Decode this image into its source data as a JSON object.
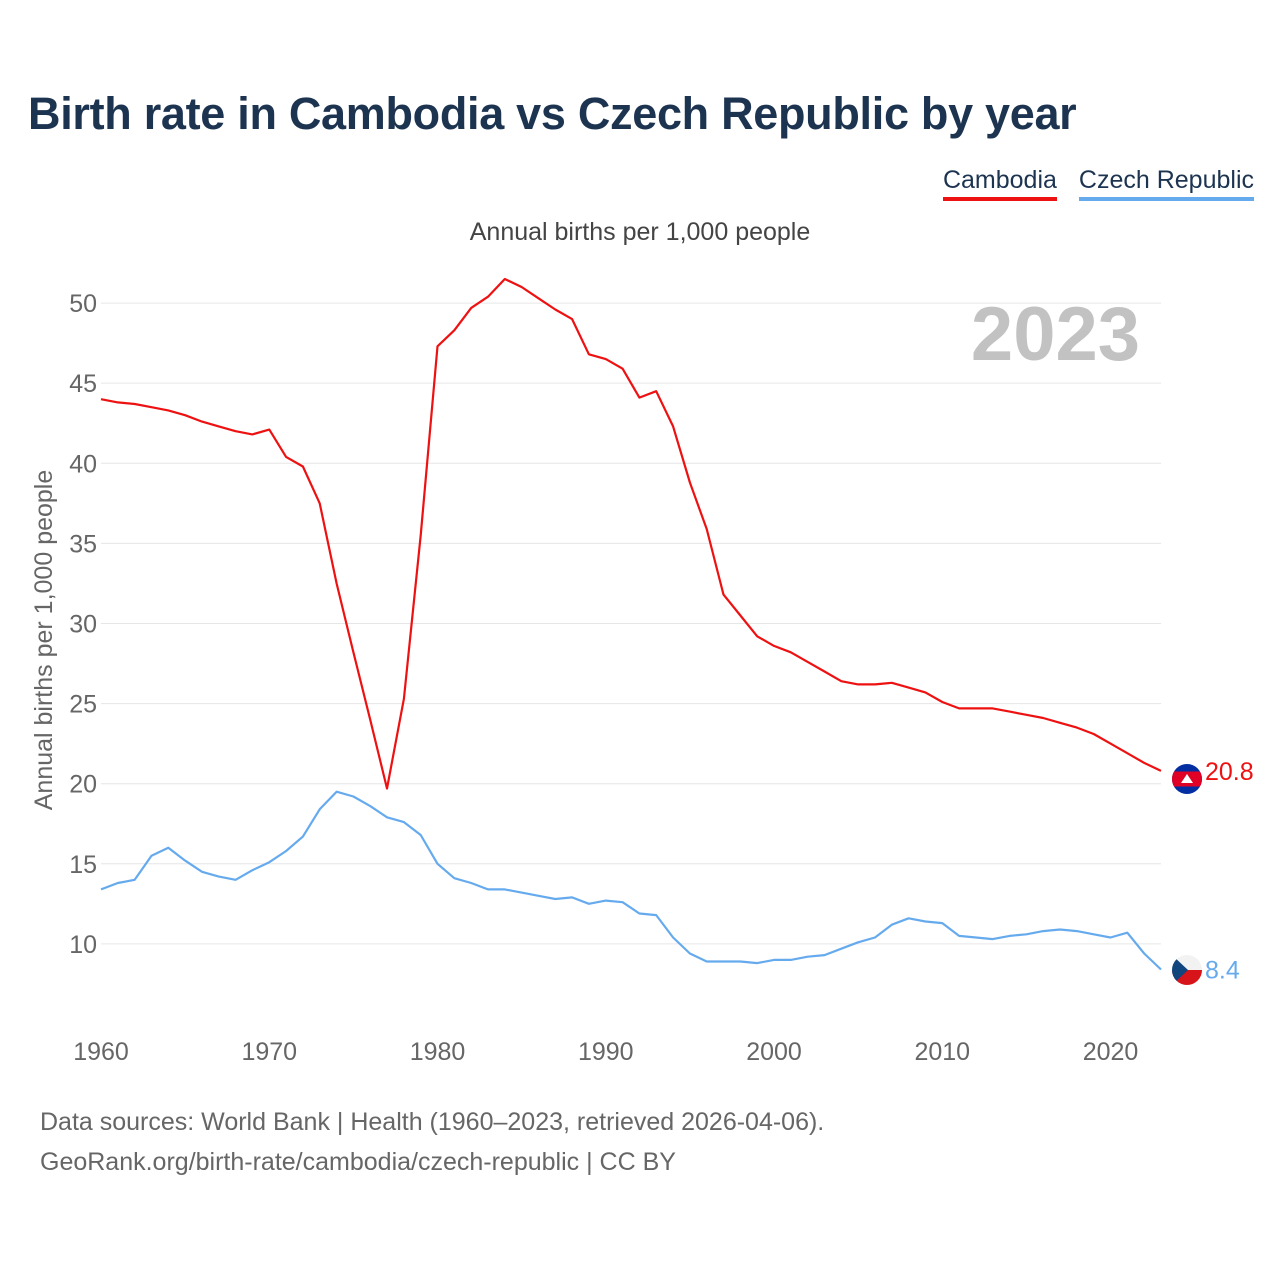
{
  "title": "Birth rate in Cambodia vs Czech Republic by year",
  "legend": [
    {
      "label": "Cambodia",
      "color": "#ee1111"
    },
    {
      "label": "Czech Republic",
      "color": "#66aaee"
    }
  ],
  "subtitle": "Annual births per 1,000 people",
  "footer": {
    "sources": "Data sources: World Bank | Health (1960–2023, retrieved 2026-04-06).",
    "link": "GeoRank.org/birth-rate/cambodia/czech-republic | CC BY"
  },
  "chart_data": {
    "type": "line",
    "title": "Birth rate in Cambodia vs Czech Republic by year",
    "ylabel": "Annual births per 1,000 people",
    "xlabel": "",
    "year_label": "2023",
    "xlim": [
      1960,
      2023
    ],
    "ylim": [
      5,
      53
    ],
    "grid": true,
    "x_ticks": [
      1960,
      1970,
      1980,
      1990,
      2000,
      2010,
      2020
    ],
    "y_ticks": [
      10,
      15,
      20,
      25,
      30,
      35,
      40,
      45,
      50
    ],
    "x": [
      1960,
      1961,
      1962,
      1963,
      1964,
      1965,
      1966,
      1967,
      1968,
      1969,
      1970,
      1971,
      1972,
      1973,
      1974,
      1975,
      1976,
      1977,
      1978,
      1979,
      1980,
      1981,
      1982,
      1983,
      1984,
      1985,
      1986,
      1987,
      1988,
      1989,
      1990,
      1991,
      1992,
      1993,
      1994,
      1995,
      1996,
      1997,
      1998,
      1999,
      2000,
      2001,
      2002,
      2003,
      2004,
      2005,
      2006,
      2007,
      2008,
      2009,
      2010,
      2011,
      2012,
      2013,
      2014,
      2015,
      2016,
      2017,
      2018,
      2019,
      2020,
      2021,
      2022,
      2023
    ],
    "series": [
      {
        "name": "Cambodia",
        "color": "#ee1111",
        "end_label": "20.8",
        "values": [
          44.0,
          43.8,
          43.7,
          43.5,
          43.3,
          43.0,
          42.6,
          42.3,
          42.0,
          41.8,
          42.1,
          40.4,
          39.8,
          37.5,
          32.5,
          28.2,
          24.0,
          19.7,
          25.3,
          35.5,
          47.3,
          48.3,
          49.7,
          50.4,
          51.5,
          51.0,
          50.3,
          49.6,
          49.0,
          46.8,
          46.5,
          45.9,
          44.1,
          44.5,
          42.3,
          38.8,
          35.9,
          31.8,
          30.5,
          29.2,
          28.6,
          28.2,
          27.6,
          27.0,
          26.4,
          26.2,
          26.2,
          26.3,
          26.0,
          25.7,
          25.1,
          24.7,
          24.7,
          24.7,
          24.5,
          24.3,
          24.1,
          23.8,
          23.5,
          23.1,
          22.5,
          21.9,
          21.3,
          20.8
        ]
      },
      {
        "name": "Czech Republic",
        "color": "#66aaee",
        "end_label": "8.4",
        "values": [
          13.4,
          13.8,
          14.0,
          15.5,
          16.0,
          15.2,
          14.5,
          14.2,
          14.0,
          14.6,
          15.1,
          15.8,
          16.7,
          18.4,
          19.5,
          19.2,
          18.6,
          17.9,
          17.6,
          16.8,
          15.0,
          14.1,
          13.8,
          13.4,
          13.4,
          13.2,
          13.0,
          12.8,
          12.9,
          12.5,
          12.7,
          12.6,
          11.9,
          11.8,
          10.4,
          9.4,
          8.9,
          8.9,
          8.9,
          8.8,
          9.0,
          9.0,
          9.2,
          9.3,
          9.7,
          10.1,
          10.4,
          11.2,
          11.6,
          11.4,
          11.3,
          10.5,
          10.4,
          10.3,
          10.5,
          10.6,
          10.8,
          10.9,
          10.8,
          10.6,
          10.4,
          10.7,
          9.4,
          8.4
        ]
      }
    ]
  }
}
